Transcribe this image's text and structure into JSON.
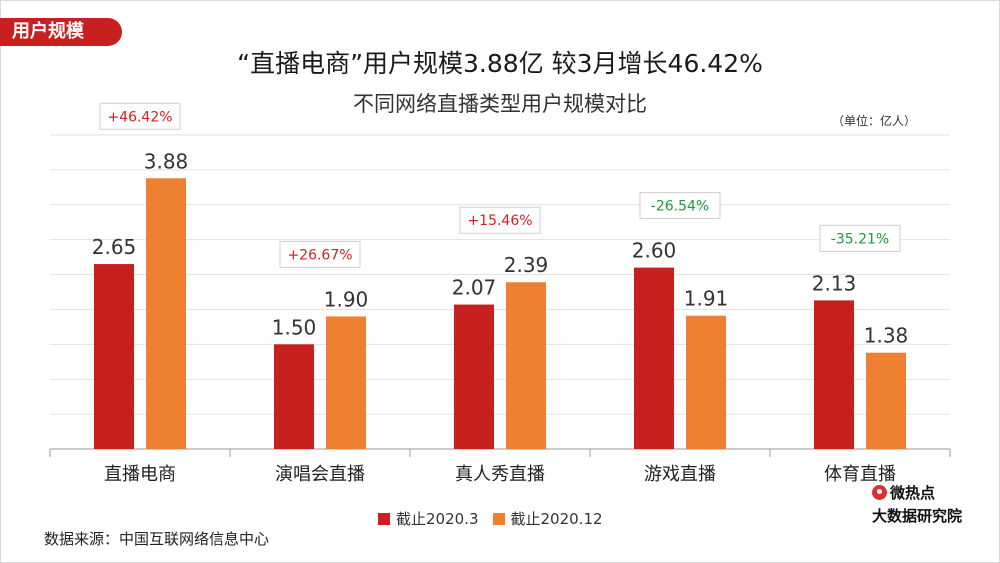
{
  "header_tag": "用户规模",
  "unit_note": "（单位：亿人）",
  "source": "数据来源：中国互联网络信息中心",
  "brand": {
    "line1": "微热点",
    "line2": "大数据研究院"
  },
  "colors": {
    "series1": "#c8201f",
    "series2": "#ee8131",
    "positive": "#d81e1e",
    "negative": "#1a9c3c"
  },
  "chart_data": {
    "type": "bar",
    "title": "“直播电商”用户规模3.88亿 较3月增长46.42%",
    "subtitle": "不同网络直播类型用户规模对比",
    "categories": [
      "直播电商",
      "演唱会直播",
      "真人秀直播",
      "游戏直播",
      "体育直播"
    ],
    "series": [
      {
        "name": "截止2020.3",
        "values": [
          2.65,
          1.5,
          2.07,
          2.6,
          2.13
        ]
      },
      {
        "name": "截止2020.12",
        "values": [
          3.88,
          1.9,
          2.39,
          1.91,
          1.38
        ]
      }
    ],
    "value_labels": [
      [
        "2.65",
        "1.50",
        "2.07",
        "2.60",
        "2.13"
      ],
      [
        "3.88",
        "1.90",
        "2.39",
        "1.91",
        "1.38"
      ]
    ],
    "changes": [
      "+46.42%",
      "+26.67%",
      "+15.46%",
      "-26.54%",
      "-35.21%"
    ],
    "ylim": [
      0,
      4.5
    ],
    "grid": true,
    "legend": "bottom-center"
  }
}
